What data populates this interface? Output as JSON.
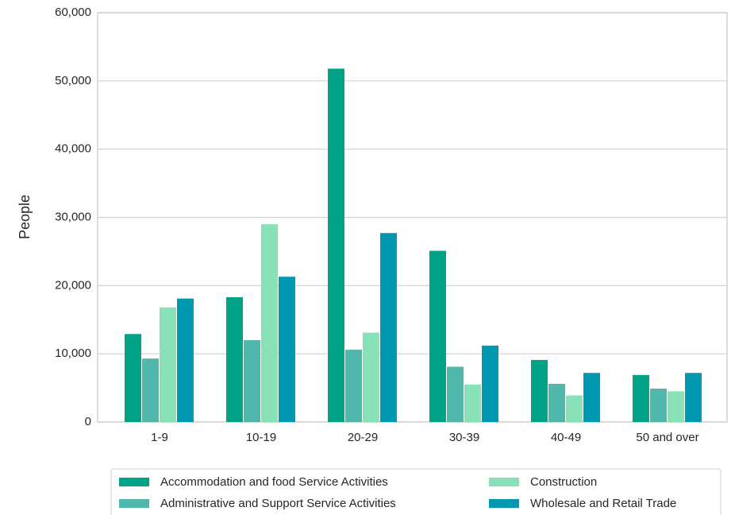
{
  "chart_data": {
    "type": "bar",
    "ylabel": "People",
    "categories": [
      "1-9",
      "10-19",
      "20-29",
      "30-39",
      "40-49",
      "50 and over"
    ],
    "series": [
      {
        "name": "Accommodation and food Service Activities",
        "color": "#00a385",
        "values": [
          12900,
          18300,
          51800,
          25100,
          9100,
          6900
        ]
      },
      {
        "name": "Administrative and Support Service Activities",
        "color": "#50b8aa",
        "values": [
          9300,
          12000,
          10600,
          8100,
          5600,
          4900
        ]
      },
      {
        "name": "Construction",
        "color": "#88e2b8",
        "values": [
          16800,
          29000,
          13100,
          5500,
          3900,
          4500
        ]
      },
      {
        "name": "Wholesale and Retail Trade",
        "color": "#0099b0",
        "values": [
          18100,
          21300,
          27700,
          11200,
          7200,
          7200
        ]
      }
    ],
    "ylim": [
      0,
      60000
    ],
    "yticks": [
      0,
      {
        "value": 10000,
        "label": "10,000"
      },
      {
        "value": 20000,
        "label": "20,000"
      },
      {
        "value": 30000,
        "label": "30,000"
      },
      {
        "value": 40000,
        "label": "40,000"
      },
      {
        "value": 50000,
        "label": "50,000"
      },
      {
        "value": 60000,
        "label": "60,000"
      }
    ],
    "grid": true,
    "legend": "bottom"
  }
}
